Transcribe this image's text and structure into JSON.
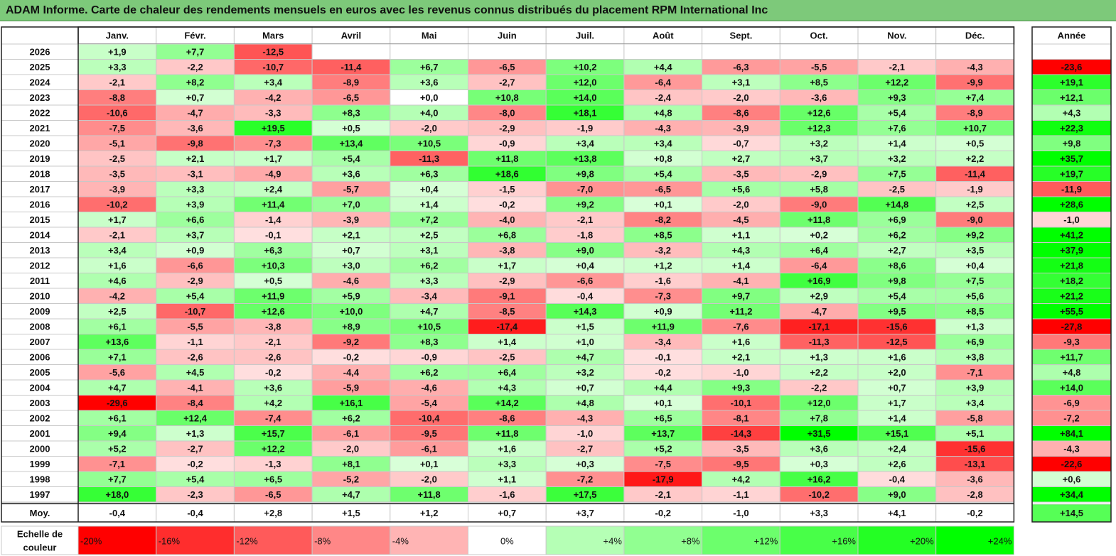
{
  "title": "ADAM Informe. Carte de chaleur des rendements mensuels en euros avec les revenus connus distribués du placement RPM International Inc",
  "chart_data": {
    "type": "heatmap",
    "title": "ADAM Informe. Carte de chaleur des rendements mensuels en euros avec les revenus connus distribués du placement RPM International Inc",
    "columns": [
      "Janv.",
      "Févr.",
      "Mars",
      "Avril",
      "Mai",
      "Juin",
      "Juil.",
      "Août",
      "Sept.",
      "Oct.",
      "Nov.",
      "Déc."
    ],
    "year_column_label": "Année",
    "rows": [
      {
        "label": "2026",
        "values": [
          "+1,9",
          "+7,7",
          "-12,5",
          "",
          "",
          "",
          "",
          "",
          "",
          "",
          "",
          ""
        ],
        "year": ""
      },
      {
        "label": "2025",
        "values": [
          "+3,3",
          "-2,2",
          "-10,7",
          "-11,4",
          "+6,7",
          "-6,5",
          "+10,2",
          "+4,4",
          "-6,3",
          "-5,5",
          "-2,1",
          "-4,3"
        ],
        "year": "-23,6"
      },
      {
        "label": "2024",
        "values": [
          "-2,1",
          "+8,2",
          "+3,4",
          "-8,9",
          "+3,6",
          "-2,7",
          "+12,0",
          "-6,4",
          "+3,1",
          "+8,5",
          "+12,2",
          "-9,9"
        ],
        "year": "+19,1"
      },
      {
        "label": "2023",
        "values": [
          "-8,8",
          "+0,7",
          "-4,2",
          "-6,5",
          "+0,0",
          "+10,8",
          "+14,0",
          "-2,4",
          "-2,0",
          "-3,6",
          "+9,3",
          "+7,4"
        ],
        "year": "+12,1"
      },
      {
        "label": "2022",
        "values": [
          "-10,6",
          "-4,7",
          "-3,3",
          "+8,3",
          "+4,0",
          "-8,0",
          "+18,1",
          "+4,8",
          "-8,6",
          "+12,6",
          "+5,4",
          "-8,9"
        ],
        "year": "+4,3"
      },
      {
        "label": "2021",
        "values": [
          "-7,5",
          "-3,6",
          "+19,5",
          "+0,5",
          "-2,0",
          "-2,9",
          "-1,9",
          "-4,3",
          "-3,9",
          "+12,3",
          "+7,6",
          "+10,7"
        ],
        "year": "+22,3"
      },
      {
        "label": "2020",
        "values": [
          "-5,1",
          "-9,8",
          "-7,3",
          "+13,4",
          "+10,5",
          "-0,9",
          "+3,4",
          "+3,4",
          "-0,7",
          "+3,2",
          "+1,4",
          "+0,5"
        ],
        "year": "+9,8"
      },
      {
        "label": "2019",
        "values": [
          "-2,5",
          "+2,1",
          "+1,7",
          "+5,4",
          "-11,3",
          "+11,8",
          "+13,8",
          "+0,8",
          "+2,7",
          "+3,7",
          "+3,2",
          "+2,2"
        ],
        "year": "+35,7"
      },
      {
        "label": "2018",
        "values": [
          "-3,5",
          "-3,1",
          "-4,9",
          "+3,6",
          "+6,3",
          "+18,6",
          "+9,8",
          "+5,4",
          "-3,5",
          "-2,9",
          "+7,5",
          "-11,4"
        ],
        "year": "+19,7"
      },
      {
        "label": "2017",
        "values": [
          "-3,9",
          "+3,3",
          "+2,4",
          "-5,7",
          "+0,4",
          "-1,5",
          "-7,0",
          "-6,5",
          "+5,6",
          "+5,8",
          "-2,5",
          "-1,9"
        ],
        "year": "-11,9"
      },
      {
        "label": "2016",
        "values": [
          "-10,2",
          "+3,9",
          "+11,4",
          "+7,0",
          "+1,4",
          "-0,2",
          "+9,2",
          "+0,1",
          "-2,0",
          "-9,0",
          "+14,8",
          "+2,5"
        ],
        "year": "+28,6"
      },
      {
        "label": "2015",
        "values": [
          "+1,7",
          "+6,6",
          "-1,4",
          "-3,9",
          "+7,2",
          "-4,0",
          "-2,1",
          "-8,2",
          "-4,5",
          "+11,8",
          "+6,9",
          "-9,0"
        ],
        "year": "-1,0"
      },
      {
        "label": "2014",
        "values": [
          "-2,1",
          "+3,7",
          "-0,1",
          "+2,1",
          "+2,5",
          "+6,8",
          "-1,8",
          "+8,5",
          "+1,1",
          "+0,2",
          "+6,2",
          "+9,2"
        ],
        "year": "+41,2"
      },
      {
        "label": "2013",
        "values": [
          "+3,4",
          "+0,9",
          "+6,3",
          "+0,7",
          "+3,1",
          "-3,8",
          "+9,0",
          "-3,2",
          "+4,3",
          "+6,4",
          "+2,7",
          "+3,5"
        ],
        "year": "+37,9"
      },
      {
        "label": "2012",
        "values": [
          "+1,6",
          "-6,6",
          "+10,3",
          "+3,0",
          "+6,2",
          "+1,7",
          "+0,4",
          "+1,2",
          "+1,4",
          "-6,4",
          "+8,6",
          "+0,4"
        ],
        "year": "+21,8"
      },
      {
        "label": "2011",
        "values": [
          "+4,6",
          "-2,9",
          "+0,5",
          "-4,6",
          "+3,3",
          "-2,9",
          "-6,6",
          "-1,6",
          "-4,1",
          "+16,9",
          "+9,8",
          "+7,5"
        ],
        "year": "+18,2"
      },
      {
        "label": "2010",
        "values": [
          "-4,2",
          "+5,4",
          "+11,9",
          "+5,9",
          "-3,4",
          "-9,1",
          "-0,4",
          "-7,3",
          "+9,7",
          "+2,9",
          "+5,4",
          "+5,6"
        ],
        "year": "+21,2"
      },
      {
        "label": "2009",
        "values": [
          "+2,5",
          "-10,7",
          "+12,6",
          "+10,0",
          "+4,7",
          "-8,5",
          "+14,3",
          "+0,9",
          "+11,2",
          "-4,7",
          "+9,5",
          "+8,5"
        ],
        "year": "+55,5"
      },
      {
        "label": "2008",
        "values": [
          "+6,1",
          "-5,5",
          "-3,8",
          "+8,9",
          "+10,5",
          "-17,4",
          "+1,5",
          "+11,9",
          "-7,6",
          "-17,1",
          "-15,6",
          "+1,3"
        ],
        "year": "-27,8"
      },
      {
        "label": "2007",
        "values": [
          "+13,6",
          "-1,1",
          "-2,1",
          "-9,2",
          "+8,3",
          "+1,4",
          "+1,0",
          "-3,4",
          "+1,6",
          "-11,3",
          "-12,5",
          "+6,9"
        ],
        "year": "-9,3"
      },
      {
        "label": "2006",
        "values": [
          "+7,1",
          "-2,6",
          "-2,6",
          "-0,2",
          "-0,9",
          "-2,5",
          "+4,7",
          "-0,1",
          "+2,1",
          "+1,3",
          "+1,6",
          "+3,8"
        ],
        "year": "+11,7"
      },
      {
        "label": "2005",
        "values": [
          "-5,6",
          "+4,5",
          "-0,2",
          "-4,4",
          "+6,2",
          "+6,4",
          "+3,2",
          "-0,2",
          "-1,0",
          "+2,2",
          "+2,0",
          "-7,1"
        ],
        "year": "+4,8"
      },
      {
        "label": "2004",
        "values": [
          "+4,7",
          "-4,1",
          "+3,6",
          "-5,9",
          "-4,6",
          "+4,3",
          "+0,7",
          "+4,4",
          "+9,3",
          "-2,2",
          "+0,7",
          "+3,9"
        ],
        "year": "+14,0"
      },
      {
        "label": "2003",
        "values": [
          "-29,6",
          "-8,4",
          "+4,2",
          "+16,1",
          "-5,4",
          "+14,2",
          "+4,8",
          "+0,1",
          "-10,1",
          "+12,0",
          "+1,7",
          "+3,4"
        ],
        "year": "-6,9"
      },
      {
        "label": "2002",
        "values": [
          "+6,1",
          "+12,4",
          "-7,4",
          "+6,2",
          "-10,4",
          "-8,6",
          "-4,3",
          "+6,5",
          "-8,1",
          "+7,8",
          "+1,4",
          "-5,8"
        ],
        "year": "-7,2"
      },
      {
        "label": "2001",
        "values": [
          "+9,4",
          "+1,3",
          "+15,7",
          "-6,1",
          "-9,5",
          "+11,8",
          "-1,0",
          "+13,7",
          "-14,3",
          "+31,5",
          "+15,1",
          "+5,1"
        ],
        "year": "+84,1"
      },
      {
        "label": "2000",
        "values": [
          "+5,2",
          "-2,7",
          "+12,2",
          "-2,0",
          "-6,1",
          "+1,6",
          "-2,7",
          "+5,2",
          "-3,5",
          "+3,6",
          "+2,4",
          "-15,6"
        ],
        "year": "-4,3"
      },
      {
        "label": "1999",
        "values": [
          "-7,1",
          "-0,2",
          "-1,3",
          "+8,1",
          "+0,1",
          "+3,3",
          "+0,3",
          "-7,5",
          "-9,5",
          "+0,3",
          "+2,6",
          "-13,1"
        ],
        "year": "-22,6"
      },
      {
        "label": "1998",
        "values": [
          "+7,7",
          "+5,4",
          "+6,5",
          "-5,2",
          "-2,0",
          "+1,1",
          "-7,2",
          "-17,9",
          "+4,2",
          "+16,2",
          "-0,4",
          "-3,6"
        ],
        "year": "+0,6"
      },
      {
        "label": "1997",
        "values": [
          "+18,0",
          "-2,3",
          "-6,5",
          "+4,7",
          "+11,8",
          "-1,6",
          "+17,5",
          "-2,1",
          "-1,1",
          "-10,2",
          "+9,0",
          "-2,8"
        ],
        "year": "+34,4"
      }
    ],
    "average_row": {
      "label": "Moy.",
      "values": [
        "-0,4",
        "-0,4",
        "+2,8",
        "+1,5",
        "+1,2",
        "+0,7",
        "+3,7",
        "-0,2",
        "-1,0",
        "+3,3",
        "+4,1",
        "-0,2"
      ],
      "year": "+14,5"
    },
    "color_scale": {
      "label": "Echelle de couleur",
      "stops": [
        "-20%",
        "-16%",
        "-12%",
        "-8%",
        "-4%",
        "0%",
        "+4%",
        "+8%",
        "+12%",
        "+16%",
        "+20%",
        "+24%"
      ],
      "stop_values": [
        -20,
        -16,
        -12,
        -8,
        -4,
        0,
        4,
        8,
        12,
        16,
        20,
        24
      ],
      "negative_color": "#ff0000",
      "neutral_color": "#ffffff",
      "positive_color": "#00ff00"
    }
  }
}
